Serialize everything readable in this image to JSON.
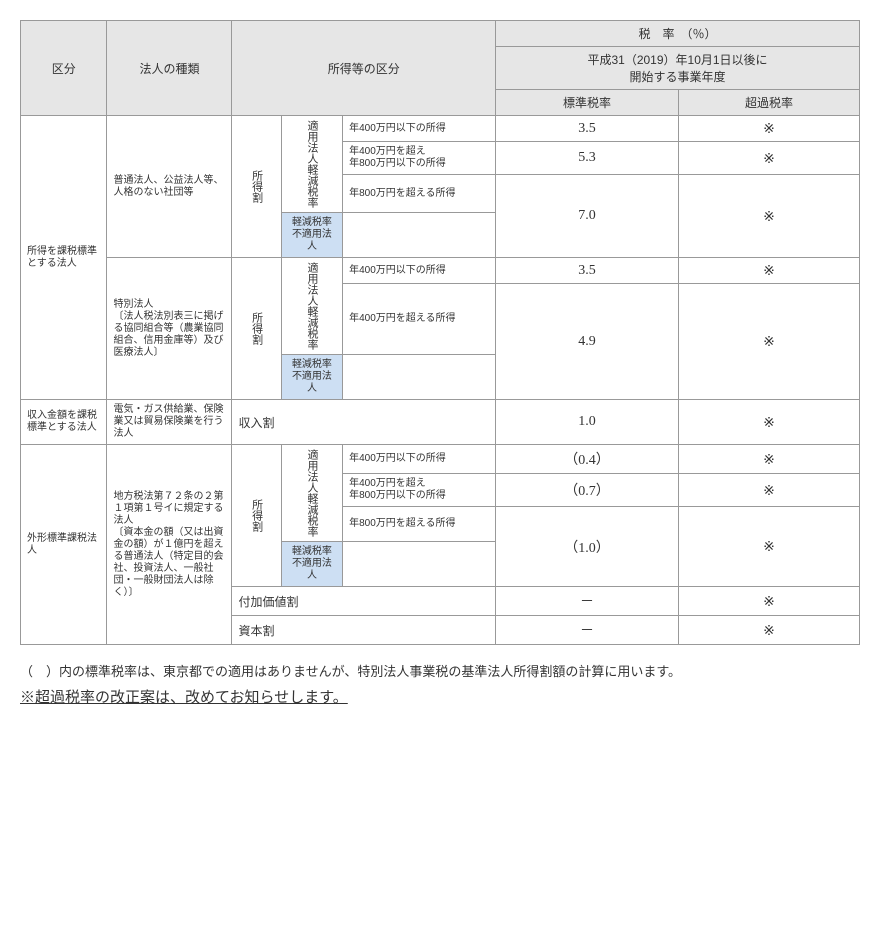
{
  "header": {
    "kubun": "区分",
    "houjin": "法人の種類",
    "shotoku": "所得等の区分",
    "zeiritsu": "税　率　（％）",
    "period": "平成31（2019）年10月1日以後に\n開始する事業年度",
    "standard": "標準税率",
    "excess": "超過税率"
  },
  "labels": {
    "shotokuwari": "所得割",
    "tekiyou": "適用法人",
    "keigen": "軽減税率",
    "nontekiyou": "軽減税率不適用法人",
    "shunyuwari": "収入割",
    "fukakachi": "付加価値割",
    "shihonwari": "資本割"
  },
  "rows": {
    "r1": {
      "cat": "所得を課税標準とする法人",
      "type": "普通法人、公益法人等、人格のない社団等",
      "item": "年400万円以下の所得",
      "std": "3.5",
      "exc": "※"
    },
    "r2": {
      "item": "年400万円を超え\n年800万円以下の所得",
      "std": "5.3",
      "exc": "※"
    },
    "r3a": {
      "item": "年800万円を超える所得"
    },
    "r3": {
      "std": "7.0",
      "exc": "※"
    },
    "r4": {
      "type": "特別法人\n〔法人税法別表三に掲げる協同組合等（農業協同組合、信用金庫等）及び医療法人〕",
      "item": "年400万円以下の所得",
      "std": "3.5",
      "exc": "※"
    },
    "r5a": {
      "item": "年400万円を超える所得"
    },
    "r5": {
      "std": "4.9",
      "exc": "※"
    },
    "r6": {
      "cat": "収入金額を課税標準とする法人",
      "type": "電気・ガス供給業、保険業又は貿易保険業を行う法人",
      "std": "1.0",
      "exc": "※"
    },
    "r7": {
      "cat": "外形標準課税法人",
      "type": "地方税法第７２条の２第１項第１号イに規定する法人\n〔資本金の額（又は出資金の額）が１億円を超える普通法人（特定目的会社、投資法人、一般社団・一般財団法人は除く）〕",
      "item": "年400万円以下の所得",
      "std": "（0.4）",
      "exc": "※"
    },
    "r8": {
      "item": "年400万円を超え\n年800万円以下の所得",
      "std": "（0.7）",
      "exc": "※"
    },
    "r9a": {
      "item": "年800万円を超える所得"
    },
    "r9": {
      "std": "（1.0）",
      "exc": "※"
    },
    "r10": {
      "std": "－",
      "exc": "※"
    },
    "r11": {
      "std": "－",
      "exc": "※"
    }
  },
  "notes": {
    "n1": "（　）内の標準税率は、東京都での適用はありませんが、特別法人事業税の基準法人所得割額の計算に用います。",
    "n2": "※超過税率の改正案は、改めてお知らせします。"
  }
}
